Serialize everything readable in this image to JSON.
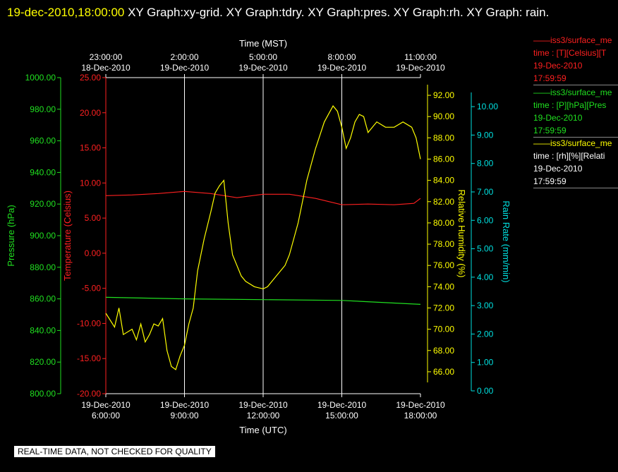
{
  "header": {
    "timestamp": "19-dec-2010,18:00:00",
    "title_rest": " XY Graph:xy-grid.  XY Graph:tdry.  XY Graph:pres.  XY Graph:rh.  XY Graph: rain."
  },
  "footer": {
    "notice": "REAL-TIME DATA, NOT CHECKED FOR QUALITY"
  },
  "colors": {
    "temperature": "#ff2020",
    "pressure": "#20e020",
    "humidity": "#ffff00",
    "rain": "#00e0e0",
    "grid": "#ffffff"
  },
  "legend": [
    {
      "line1": "iss3/surface_me",
      "line2": "time : [T][Celsius][T",
      "date": "19-Dec-2010",
      "time": "17:59:59",
      "color": "#ff2020"
    },
    {
      "line1": "iss3/surface_me",
      "line2": "time : [P][hPa][Pres",
      "date": "19-Dec-2010",
      "time": "17:59:59",
      "color": "#20e020"
    },
    {
      "line1": "iss3/surface_me",
      "line2": "time : [rh][%][Relati",
      "date": "19-Dec-2010",
      "time": "17:59:59",
      "color": "#ffff00"
    }
  ],
  "chart_data": {
    "type": "line",
    "x_top_label": "Time (MST)",
    "x_bottom_label": "Time (UTC)",
    "x_range_utc": [
      "2010-12-19 06:00",
      "2010-12-19 18:00"
    ],
    "top_ticks": [
      {
        "time": "23:00:00",
        "date": "18-Dec-2010"
      },
      {
        "time": "2:00:00",
        "date": "19-Dec-2010"
      },
      {
        "time": "5:00:00",
        "date": "19-Dec-2010"
      },
      {
        "time": "8:00:00",
        "date": "19-Dec-2010"
      },
      {
        "time": "11:00:00",
        "date": "19-Dec-2010"
      }
    ],
    "bottom_ticks": [
      {
        "date": "19-Dec-2010",
        "time": "6:00:00"
      },
      {
        "date": "19-Dec-2010",
        "time": "9:00:00"
      },
      {
        "date": "19-Dec-2010",
        "time": "12:00:00"
      },
      {
        "date": "19-Dec-2010",
        "time": "15:00:00"
      },
      {
        "date": "19-Dec-2010",
        "time": "18:00:00"
      }
    ],
    "grid": true,
    "axes": {
      "pressure": {
        "label": "Pressure (hPa)",
        "range": [
          800,
          1000
        ],
        "ticks": [
          "800.00",
          "820.00",
          "840.00",
          "860.00",
          "880.00",
          "900.00",
          "920.00",
          "940.00",
          "960.00",
          "980.00",
          "1000.00"
        ]
      },
      "temperature": {
        "label": "Temperature (Celsius)",
        "range": [
          -20,
          25
        ],
        "ticks": [
          "-20.00",
          "-15.00",
          "-10.00",
          "-5.00",
          "0.00",
          "5.00",
          "10.00",
          "15.00",
          "20.00",
          "25.00"
        ]
      },
      "humidity": {
        "label": "Relative Humidity (%)",
        "range": [
          65,
          93
        ],
        "ticks": [
          "66.00",
          "68.00",
          "70.00",
          "72.00",
          "74.00",
          "76.00",
          "78.00",
          "80.00",
          "82.00",
          "84.00",
          "86.00",
          "88.00",
          "90.00",
          "92.00"
        ]
      },
      "rain": {
        "label": "Rain Rate (mm/min)",
        "range": [
          0,
          10.5
        ],
        "ticks": [
          "0.00",
          "1.00",
          "2.00",
          "3.00",
          "4.00",
          "5.00",
          "6.00",
          "7.00",
          "8.00",
          "9.00",
          "10.00"
        ]
      }
    },
    "series": [
      {
        "key": "temperature",
        "axis": "temperature",
        "x": [
          "06:00",
          "07:00",
          "08:00",
          "09:00",
          "10:00",
          "11:00",
          "12:00",
          "13:00",
          "14:00",
          "15:00",
          "16:00",
          "17:00",
          "17:45",
          "18:00"
        ],
        "y": [
          8.2,
          8.3,
          8.5,
          8.8,
          8.5,
          7.9,
          8.4,
          8.4,
          7.8,
          6.9,
          7.0,
          6.9,
          7.1,
          7.8
        ]
      },
      {
        "key": "pressure",
        "axis": "pressure",
        "x": [
          "06:00",
          "09:00",
          "12:00",
          "15:00",
          "18:00"
        ],
        "y": [
          861.0,
          860.0,
          859.5,
          859.0,
          856.5
        ]
      },
      {
        "key": "humidity",
        "axis": "humidity",
        "x": [
          "06:00",
          "06:20",
          "06:30",
          "06:40",
          "07:00",
          "07:10",
          "07:20",
          "07:30",
          "07:40",
          "07:50",
          "08:00",
          "08:10",
          "08:20",
          "08:30",
          "08:40",
          "08:50",
          "09:00",
          "09:10",
          "09:20",
          "09:30",
          "09:45",
          "10:00",
          "10:10",
          "10:20",
          "10:30",
          "10:40",
          "10:50",
          "11:00",
          "11:10",
          "11:20",
          "11:40",
          "12:00",
          "12:10",
          "12:30",
          "12:50",
          "13:00",
          "13:20",
          "13:40",
          "14:00",
          "14:20",
          "14:40",
          "14:50",
          "15:00",
          "15:10",
          "15:20",
          "15:30",
          "15:40",
          "15:50",
          "16:00",
          "16:10",
          "16:20",
          "16:40",
          "17:00",
          "17:20",
          "17:40",
          "17:50",
          "18:00"
        ],
        "y": [
          71.5,
          70.2,
          72.0,
          69.5,
          70.0,
          69.0,
          70.5,
          68.8,
          69.5,
          70.5,
          70.3,
          71.0,
          68.0,
          66.5,
          66.2,
          67.5,
          68.5,
          70.5,
          72.0,
          75.5,
          78.5,
          81.0,
          82.8,
          83.5,
          84.0,
          80.0,
          77.0,
          76.0,
          75.0,
          74.5,
          74.0,
          73.8,
          74.0,
          75.0,
          76.0,
          77.0,
          80.0,
          84.0,
          87.0,
          89.5,
          91.0,
          90.5,
          89.0,
          87.0,
          88.0,
          89.5,
          90.2,
          90.0,
          88.5,
          89.0,
          89.5,
          89.0,
          89.0,
          89.5,
          89.0,
          88.0,
          86.0
        ]
      },
      {
        "key": "rain",
        "axis": "rain",
        "x": [],
        "y": []
      }
    ]
  }
}
